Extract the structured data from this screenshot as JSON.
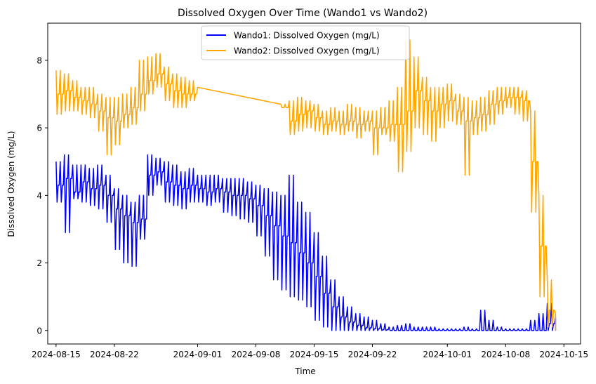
{
  "chart_data": {
    "type": "line",
    "title": "Dissolved Oxygen Over Time (Wando1 vs Wando2)",
    "xlabel": "Time",
    "ylabel": "Dissolved Oxygen (mg/L)",
    "xlim": [
      "2024-08-14",
      "2024-10-17"
    ],
    "ylim": [
      -0.4,
      9.1
    ],
    "x_ticks": [
      "2024-08-15",
      "2024-08-22",
      "2024-09-01",
      "2024-09-08",
      "2024-09-15",
      "2024-09-22",
      "2024-10-01",
      "2024-10-08",
      "2024-10-15"
    ],
    "y_ticks": [
      0,
      2,
      4,
      6,
      8
    ],
    "grid": false,
    "legend_position": "upper-center",
    "series": [
      {
        "name": "Wando1: Dissolved Oxygen (mg/L)",
        "color": "#0000ff",
        "x": [
          "2024-08-15",
          "2024-08-16",
          "2024-08-17",
          "2024-08-18",
          "2024-08-19",
          "2024-08-20",
          "2024-08-21",
          "2024-08-22",
          "2024-08-23",
          "2024-08-24",
          "2024-08-25",
          "2024-08-26",
          "2024-08-27",
          "2024-08-28",
          "2024-08-29",
          "2024-08-30",
          "2024-08-31",
          "2024-09-01",
          "2024-09-02",
          "2024-09-03",
          "2024-09-04",
          "2024-09-05",
          "2024-09-06",
          "2024-09-07",
          "2024-09-08",
          "2024-09-09",
          "2024-09-10",
          "2024-09-11",
          "2024-09-12",
          "2024-09-13",
          "2024-09-14",
          "2024-09-15",
          "2024-09-16",
          "2024-09-17",
          "2024-09-18",
          "2024-09-19",
          "2024-09-20",
          "2024-09-21",
          "2024-09-22",
          "2024-09-23",
          "2024-09-24",
          "2024-09-25",
          "2024-09-26",
          "2024-09-27",
          "2024-09-28",
          "2024-09-29",
          "2024-09-30",
          "2024-10-01",
          "2024-10-02",
          "2024-10-03",
          "2024-10-04",
          "2024-10-05",
          "2024-10-06",
          "2024-10-07",
          "2024-10-08",
          "2024-10-09",
          "2024-10-10",
          "2024-10-11",
          "2024-10-12",
          "2024-10-13",
          "2024-10-14"
        ],
        "values": [
          4.3,
          4.5,
          4.1,
          4.4,
          4.2,
          4.3,
          4.0,
          3.6,
          3.4,
          3.2,
          3.3,
          4.6,
          4.7,
          4.4,
          4.3,
          4.2,
          4.3,
          4.2,
          4.1,
          4.2,
          4.1,
          4.0,
          4.0,
          3.9,
          3.7,
          3.4,
          3.1,
          2.8,
          2.6,
          2.3,
          2.0,
          1.6,
          1.1,
          0.7,
          0.4,
          0.25,
          0.15,
          0.08,
          0.05,
          0.02,
          0.0,
          0.0,
          0.0,
          0.0,
          0.0,
          0.0,
          0.0,
          0.0,
          0.0,
          0.0,
          0.0,
          0.0,
          0.0,
          0.0,
          0.0,
          0.0,
          0.0,
          0.0,
          0.0,
          0.2,
          0.0
        ],
        "low": [
          3.8,
          2.9,
          3.9,
          3.8,
          3.7,
          3.6,
          3.2,
          2.4,
          2.0,
          1.9,
          2.7,
          4.0,
          4.3,
          3.8,
          3.7,
          3.6,
          3.8,
          3.8,
          3.7,
          3.8,
          3.5,
          3.4,
          3.3,
          3.2,
          2.8,
          2.2,
          1.5,
          1.2,
          1.0,
          0.9,
          0.7,
          0.3,
          0.1,
          0.0,
          0.0,
          0.0,
          0.0,
          0.0,
          0.0,
          0.0,
          0.0,
          0.0,
          0.0,
          0.0,
          0.0,
          0.0,
          0.0,
          0.0,
          0.0,
          0.0,
          0.0,
          0.0,
          0.0,
          0.0,
          0.0,
          0.0,
          0.0,
          0.0,
          0.0,
          0.0,
          0.0
        ],
        "high": [
          5.0,
          5.2,
          4.9,
          4.9,
          4.8,
          4.9,
          4.6,
          4.2,
          4.0,
          3.8,
          4.0,
          5.2,
          5.1,
          5.0,
          4.9,
          4.7,
          4.8,
          4.6,
          4.6,
          4.6,
          4.5,
          4.5,
          4.5,
          4.4,
          4.3,
          4.2,
          4.1,
          4.0,
          4.6,
          3.8,
          3.5,
          2.9,
          2.2,
          1.5,
          1.0,
          0.7,
          0.5,
          0.4,
          0.3,
          0.2,
          0.1,
          0.15,
          0.2,
          0.1,
          0.1,
          0.1,
          0.05,
          0.05,
          0.05,
          0.1,
          0.05,
          0.6,
          0.3,
          0.1,
          0.05,
          0.05,
          0.05,
          0.3,
          0.5,
          0.8,
          0.4
        ],
        "notes": "min/max band per day approximates rapid tidal oscillation"
      },
      {
        "name": "Wando2: Dissolved Oxygen (mg/L)",
        "color": "#ffa500",
        "x": [
          "2024-08-15",
          "2024-08-16",
          "2024-08-17",
          "2024-08-18",
          "2024-08-19",
          "2024-08-20",
          "2024-08-21",
          "2024-08-22",
          "2024-08-23",
          "2024-08-24",
          "2024-08-25",
          "2024-08-26",
          "2024-08-27",
          "2024-08-28",
          "2024-08-29",
          "2024-08-30",
          "2024-08-31",
          "2024-09-01",
          "2024-09-11",
          "2024-09-12",
          "2024-09-13",
          "2024-09-14",
          "2024-09-15",
          "2024-09-16",
          "2024-09-17",
          "2024-09-18",
          "2024-09-19",
          "2024-09-20",
          "2024-09-21",
          "2024-09-22",
          "2024-09-23",
          "2024-09-24",
          "2024-09-25",
          "2024-09-26",
          "2024-09-27",
          "2024-09-28",
          "2024-09-29",
          "2024-09-30",
          "2024-10-01",
          "2024-10-02",
          "2024-10-03",
          "2024-10-04",
          "2024-10-05",
          "2024-10-06",
          "2024-10-07",
          "2024-10-08",
          "2024-10-09",
          "2024-10-10",
          "2024-10-11",
          "2024-10-12",
          "2024-10-13",
          "2024-10-14"
        ],
        "values": [
          7.0,
          7.1,
          6.9,
          6.8,
          6.7,
          6.5,
          6.3,
          6.2,
          6.4,
          6.6,
          7.0,
          7.4,
          7.6,
          7.3,
          7.1,
          7.0,
          7.0,
          7.2,
          6.6,
          6.2,
          6.4,
          6.5,
          6.3,
          6.1,
          6.2,
          6.1,
          6.2,
          6.1,
          6.2,
          6.0,
          6.0,
          6.1,
          6.1,
          6.5,
          7.1,
          6.8,
          6.5,
          6.7,
          6.8,
          6.5,
          6.2,
          6.3,
          6.4,
          6.7,
          6.8,
          6.9,
          6.9,
          6.8,
          5.0,
          2.5,
          0.6,
          0.1
        ],
        "low": [
          6.4,
          6.5,
          6.5,
          6.4,
          6.3,
          5.9,
          5.2,
          5.5,
          6.0,
          6.1,
          6.5,
          7.0,
          7.2,
          6.8,
          6.6,
          6.6,
          6.8,
          7.0,
          6.6,
          5.8,
          5.9,
          6.0,
          5.9,
          5.8,
          5.9,
          5.8,
          5.9,
          5.7,
          5.9,
          5.2,
          5.8,
          5.6,
          4.7,
          5.3,
          6.0,
          5.8,
          5.6,
          6.0,
          6.2,
          6.1,
          4.6,
          5.8,
          5.9,
          6.1,
          6.4,
          6.6,
          6.4,
          6.2,
          3.5,
          1.0,
          0.1,
          0.0
        ],
        "high": [
          7.7,
          7.6,
          7.4,
          7.2,
          7.2,
          7.0,
          6.9,
          6.9,
          7.0,
          7.2,
          8.0,
          8.1,
          8.2,
          7.8,
          7.6,
          7.5,
          7.4,
          7.4,
          6.7,
          6.8,
          6.9,
          6.8,
          6.7,
          6.5,
          6.6,
          6.5,
          6.7,
          6.6,
          6.5,
          6.5,
          6.6,
          6.8,
          7.2,
          8.6,
          8.1,
          7.5,
          7.2,
          7.2,
          7.3,
          7.0,
          6.9,
          6.8,
          6.9,
          7.1,
          7.2,
          7.2,
          7.2,
          7.1,
          6.5,
          4.0,
          1.5,
          0.5
        ],
        "notes": "gap in data between 2024-09-01 and 2024-09-11 is drawn as a straight line"
      }
    ]
  }
}
